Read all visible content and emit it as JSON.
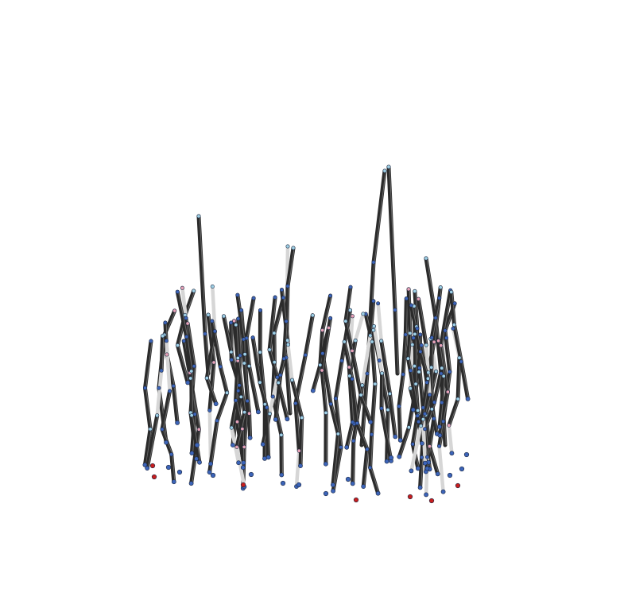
{
  "scene": {
    "background": "#ffffff",
    "rod_dark": "#2b2b2b",
    "rod_light": "#d6d6d6",
    "node_blue": "#3c64b8",
    "node_red": "#c81e1e",
    "node_pink": "#e7a2b6",
    "node_pale": "#9fd1e6"
  }
}
